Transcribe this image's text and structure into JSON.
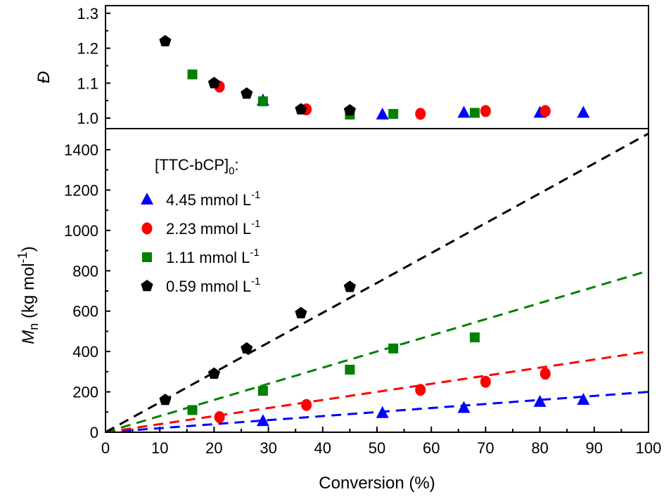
{
  "chart_data": [
    {
      "type": "scatter",
      "panel": "top",
      "ylabel": "Đ",
      "ylim": [
        0.97,
        1.32
      ],
      "yticks": [
        "1.0",
        "1.1",
        "1.2",
        "1.3"
      ],
      "xlim": [
        0,
        100
      ],
      "series": [
        {
          "name": "4.45 mmol L-1",
          "marker": "triangle",
          "color": "#0000ff",
          "x": [
            29,
            51,
            66,
            80,
            88
          ],
          "y": [
            1.05,
            1.01,
            1.015,
            1.015,
            1.015
          ]
        },
        {
          "name": "2.23 mmol L-1",
          "marker": "circle",
          "color": "#ff0000",
          "x": [
            21,
            37,
            58,
            70,
            81
          ],
          "y": [
            1.09,
            1.025,
            1.012,
            1.02,
            1.02
          ]
        },
        {
          "name": "1.11 mmol L-1",
          "marker": "square",
          "color": "#008000",
          "x": [
            16,
            29,
            45,
            53,
            68
          ],
          "y": [
            1.125,
            1.048,
            1.01,
            1.012,
            1.015
          ]
        },
        {
          "name": "0.59 mmol L-1",
          "marker": "pentagon",
          "color": "#000000",
          "x": [
            11,
            20,
            26,
            36,
            45
          ],
          "y": [
            1.22,
            1.1,
            1.07,
            1.025,
            1.022
          ]
        }
      ]
    },
    {
      "type": "scatter",
      "panel": "bottom",
      "xlabel": "Conversion (%)",
      "ylabel_main": "M",
      "ylabel_sub": "n",
      "ylabel_rest": " (kg mol",
      "ylabel_sup": "-1",
      "ylabel_end": ")",
      "xlim": [
        0,
        100
      ],
      "ylim": [
        0,
        1505
      ],
      "xticks": [
        "0",
        "10",
        "20",
        "30",
        "40",
        "50",
        "60",
        "70",
        "80",
        "90",
        "100"
      ],
      "yticks": [
        "0",
        "200",
        "400",
        "600",
        "800",
        "1000",
        "1200",
        "1400"
      ],
      "legend_title": "[TTC-bCP]",
      "legend_title_sub": "0",
      "legend_title_end": ":",
      "legend_placement": "top-left",
      "series": [
        {
          "name": "4.45 mmol L",
          "sup": "-1",
          "marker": "triangle",
          "color": "#0000ff",
          "x": [
            29,
            51,
            66,
            80,
            88
          ],
          "y": [
            55,
            95,
            120,
            150,
            160
          ],
          "fit_end": 200
        },
        {
          "name": "2.23 mmol L",
          "sup": "-1",
          "marker": "circle",
          "color": "#ff0000",
          "x": [
            21,
            37,
            58,
            70,
            81
          ],
          "y": [
            75,
            135,
            210,
            250,
            290
          ],
          "fit_end": 400
        },
        {
          "name": "1.11 mmol L",
          "sup": "-1",
          "marker": "square",
          "color": "#008000",
          "x": [
            16,
            29,
            45,
            53,
            68
          ],
          "y": [
            110,
            205,
            310,
            415,
            470
          ],
          "fit_end": 800
        },
        {
          "name": "0.59 mmol L",
          "sup": "-1",
          "marker": "pentagon",
          "color": "#000000",
          "x": [
            11,
            20,
            26,
            36,
            45
          ],
          "y": [
            160,
            290,
            415,
            590,
            720
          ],
          "fit_end": 1480
        }
      ]
    }
  ]
}
